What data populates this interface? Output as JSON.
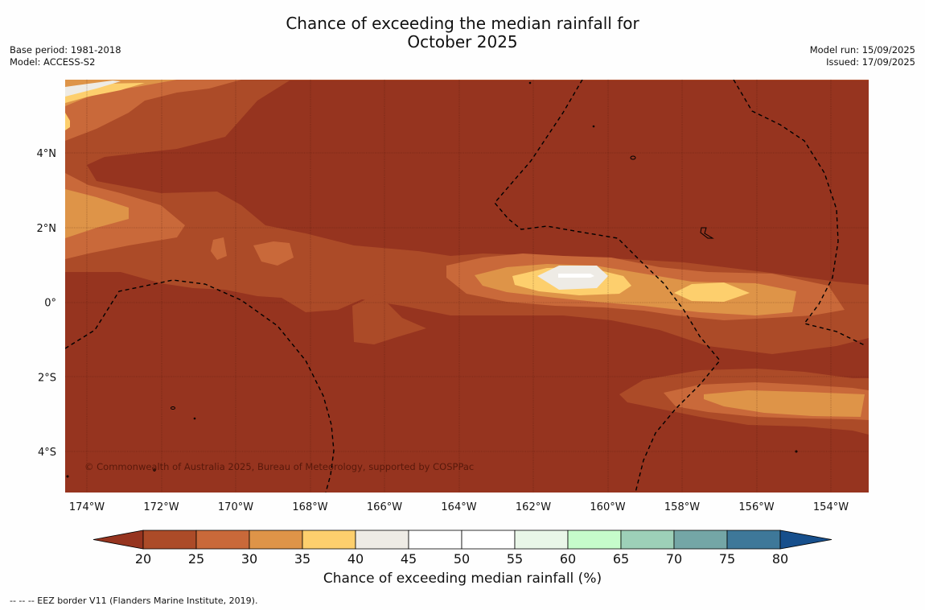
{
  "title_line1": "Chance of exceeding the median rainfall for",
  "title_line2": "October 2025",
  "meta_left": [
    "Base period: 1981-2018",
    "Model: ACCESS-S2"
  ],
  "meta_right": [
    "Model run: 15/09/2025",
    "Issued: 17/09/2025"
  ],
  "copyright": "© Commonwealth of Australia 2025, Bureau of Meteorology, supported by COSPPac",
  "x_ticks": [
    "174°W",
    "172°W",
    "170°W",
    "168°W",
    "166°W",
    "164°W",
    "162°W",
    "160°W",
    "158°W",
    "156°W",
    "154°W"
  ],
  "y_ticks": [
    "4°N",
    "2°N",
    "0°",
    "2°S",
    "4°S"
  ],
  "colorbar": {
    "title": "Chance of exceeding median rainfall (%)",
    "ticks": [
      "20",
      "25",
      "30",
      "35",
      "40",
      "45",
      "50",
      "55",
      "60",
      "65",
      "70",
      "75",
      "80"
    ],
    "colors": [
      "#ac4b28",
      "#c9693a",
      "#de9448",
      "#fdcf6d",
      "#eeebe5",
      "#ffffff",
      "#ffffff",
      "#e9f6e8",
      "#c6fccb",
      "#9dd0b8",
      "#74a6a6",
      "#3e7899"
    ],
    "under_color": "#96341f",
    "over_color": "#174f8c"
  },
  "legend_note": "--  --  -- EEZ border V11 (Flanders Marine Institute, 2019)."
}
